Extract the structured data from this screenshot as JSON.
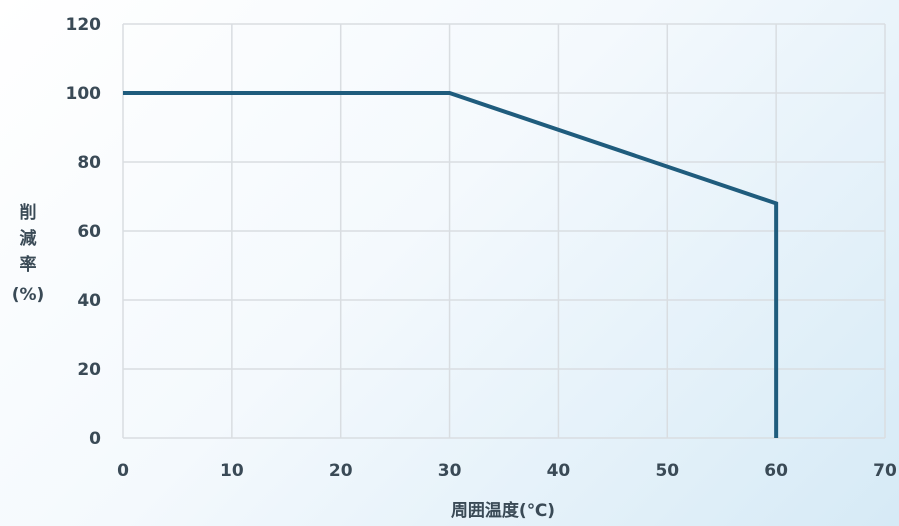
{
  "chart_data": {
    "type": "line",
    "title": "",
    "xlabel": "周囲温度(℃)",
    "ylabel": [
      "削",
      "減",
      "率",
      "(%)"
    ],
    "xlim": [
      0,
      70
    ],
    "ylim": [
      0,
      120
    ],
    "xticks": [
      "0",
      "10",
      "20",
      "30",
      "40",
      "50",
      "60",
      "70"
    ],
    "yticks": [
      "0",
      "20",
      "40",
      "60",
      "80",
      "100",
      "120"
    ],
    "grid": true,
    "legend": "none",
    "series": [
      {
        "x": [
          0,
          30,
          60,
          60
        ],
        "y": [
          100,
          100,
          68,
          0
        ],
        "color": "#1f5c7d"
      }
    ]
  }
}
